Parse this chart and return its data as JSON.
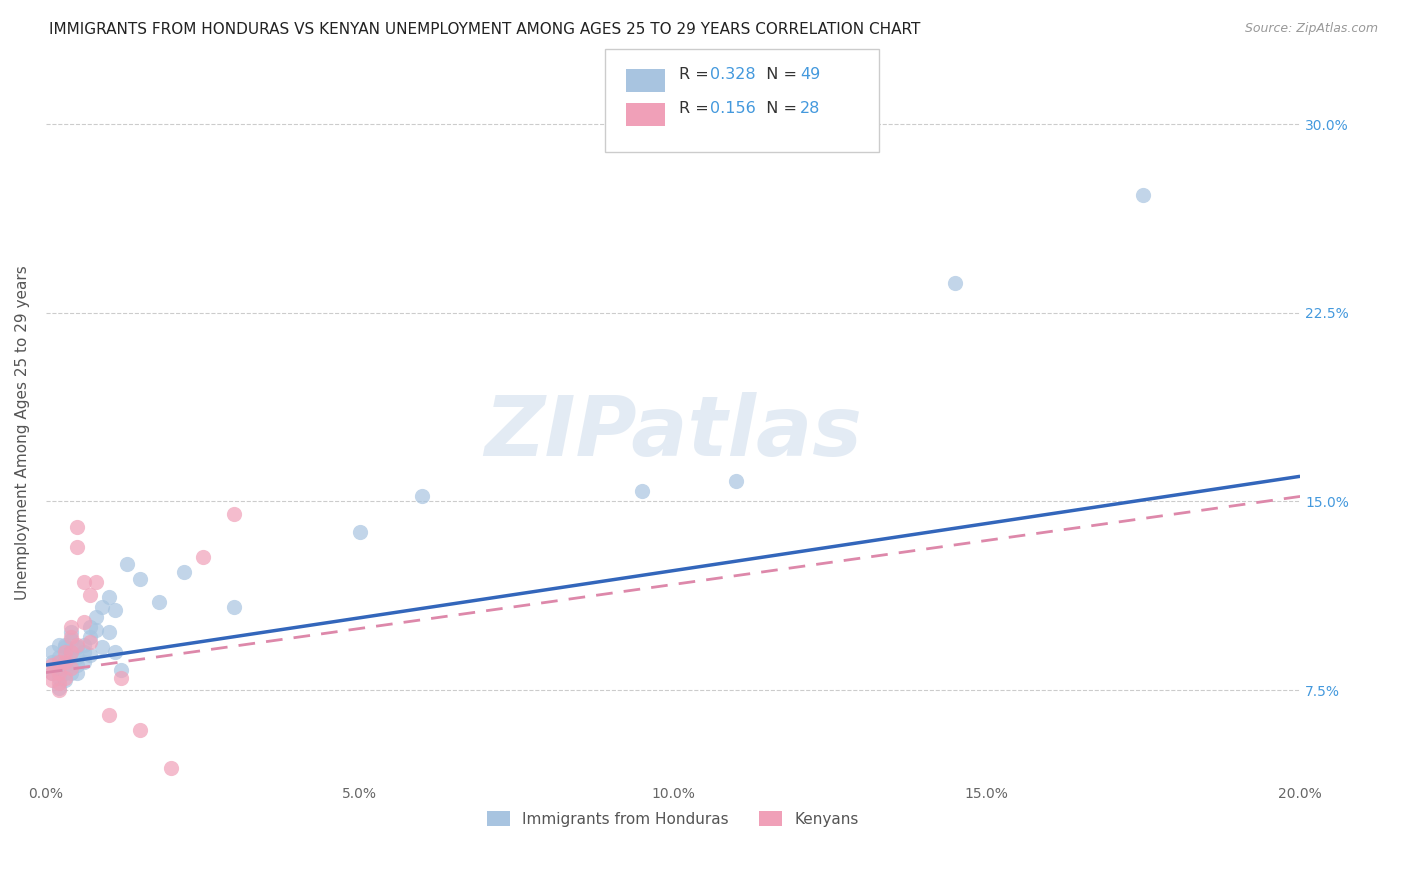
{
  "title": "IMMIGRANTS FROM HONDURAS VS KENYAN UNEMPLOYMENT AMONG AGES 25 TO 29 YEARS CORRELATION CHART",
  "source": "Source: ZipAtlas.com",
  "ylabel": "Unemployment Among Ages 25 to 29 years",
  "legend_label1": "Immigrants from Honduras",
  "legend_label2": "Kenyans",
  "R1": 0.328,
  "N1": 49,
  "R2": 0.156,
  "N2": 28,
  "color_blue": "#a8c4e0",
  "color_pink": "#f0a0b8",
  "color_blue_line": "#3366bb",
  "color_pink_line": "#dd88aa",
  "color_blue_text": "#4499dd",
  "watermark": "ZIPatlas",
  "xlim": [
    0.0,
    0.2
  ],
  "ylim": [
    0.04,
    0.315
  ],
  "blue_scatter_x": [
    0.001,
    0.001,
    0.001,
    0.002,
    0.002,
    0.002,
    0.002,
    0.002,
    0.003,
    0.003,
    0.003,
    0.003,
    0.003,
    0.003,
    0.004,
    0.004,
    0.004,
    0.004,
    0.004,
    0.005,
    0.005,
    0.005,
    0.005,
    0.006,
    0.006,
    0.006,
    0.007,
    0.007,
    0.007,
    0.008,
    0.008,
    0.009,
    0.009,
    0.01,
    0.01,
    0.011,
    0.011,
    0.012,
    0.013,
    0.015,
    0.018,
    0.022,
    0.03,
    0.05,
    0.06,
    0.095,
    0.11,
    0.145,
    0.175
  ],
  "blue_scatter_y": [
    0.09,
    0.086,
    0.082,
    0.093,
    0.088,
    0.084,
    0.08,
    0.076,
    0.092,
    0.088,
    0.085,
    0.082,
    0.079,
    0.093,
    0.09,
    0.087,
    0.082,
    0.095,
    0.098,
    0.092,
    0.088,
    0.085,
    0.082,
    0.093,
    0.09,
    0.086,
    0.1,
    0.096,
    0.089,
    0.104,
    0.099,
    0.108,
    0.092,
    0.098,
    0.112,
    0.107,
    0.09,
    0.083,
    0.125,
    0.119,
    0.11,
    0.122,
    0.108,
    0.138,
    0.152,
    0.154,
    0.158,
    0.237,
    0.272
  ],
  "pink_scatter_x": [
    0.001,
    0.001,
    0.001,
    0.002,
    0.002,
    0.002,
    0.002,
    0.003,
    0.003,
    0.003,
    0.004,
    0.004,
    0.004,
    0.004,
    0.005,
    0.005,
    0.005,
    0.006,
    0.006,
    0.007,
    0.007,
    0.008,
    0.01,
    0.012,
    0.015,
    0.02,
    0.025,
    0.03
  ],
  "pink_scatter_y": [
    0.085,
    0.082,
    0.079,
    0.086,
    0.082,
    0.078,
    0.075,
    0.09,
    0.086,
    0.08,
    0.1,
    0.096,
    0.09,
    0.084,
    0.14,
    0.132,
    0.093,
    0.118,
    0.102,
    0.113,
    0.094,
    0.118,
    0.065,
    0.08,
    0.059,
    0.044,
    0.128,
    0.145
  ],
  "blue_line_x": [
    0.0,
    0.2
  ],
  "blue_line_y": [
    0.085,
    0.16
  ],
  "pink_line_x": [
    0.0,
    0.2
  ],
  "pink_line_y": [
    0.082,
    0.152
  ],
  "title_fontsize": 11,
  "source_fontsize": 9,
  "tick_fontsize": 10,
  "label_fontsize": 11,
  "background_color": "#ffffff",
  "grid_color": "#cccccc"
}
